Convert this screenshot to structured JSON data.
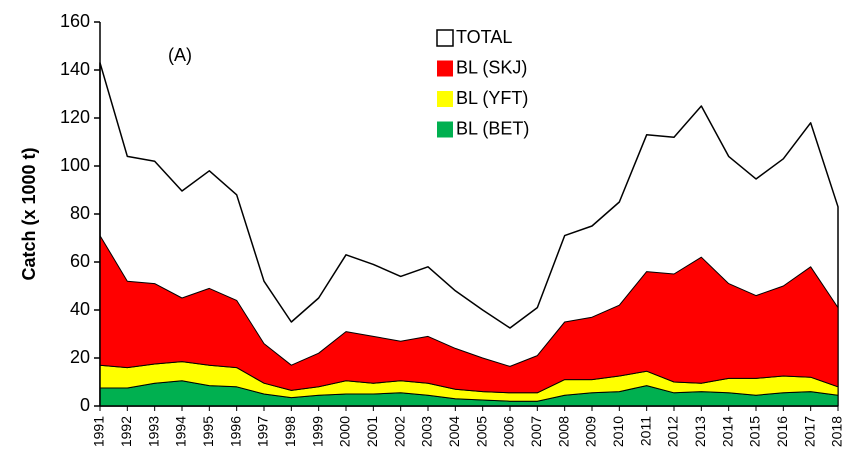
{
  "chart_data": {
    "type": "area",
    "y_label": "Catch (x 1000 t)",
    "annotation": "(A)",
    "categories": [
      "1991",
      "1992",
      "1993",
      "1994",
      "1995",
      "1996",
      "1997",
      "1998",
      "1999",
      "2000",
      "2001",
      "2002",
      "2003",
      "2004",
      "2005",
      "2006",
      "2007",
      "2008",
      "2009",
      "2010",
      "2011",
      "2012",
      "2013",
      "2014",
      "2015",
      "2016",
      "2017",
      "2018"
    ],
    "series": [
      {
        "name": "TOTAL",
        "color": "#ffffff",
        "stacked": false,
        "values": [
          143,
          104,
          102,
          89.6,
          98,
          88,
          52,
          35,
          45,
          63,
          59,
          54,
          58,
          48,
          40,
          32.5,
          41,
          71,
          75,
          85,
          113,
          112,
          125,
          104,
          94.6,
          103,
          118,
          83
        ]
      },
      {
        "name": "BL (SKJ)",
        "color": "#ff0000",
        "stacked": true,
        "values": [
          54,
          36,
          33.5,
          26.5,
          32,
          28,
          16.5,
          10.5,
          14,
          20.5,
          19.5,
          16.5,
          19.5,
          17,
          14,
          11,
          15.5,
          24,
          26,
          29.5,
          41.5,
          45,
          52.5,
          39.5,
          34.5,
          37.5,
          46,
          33
        ]
      },
      {
        "name": "BL (YFT)",
        "color": "#ffff00",
        "stacked": true,
        "values": [
          9.5,
          8.5,
          8,
          8,
          8.5,
          8,
          4.5,
          3,
          3.5,
          5.5,
          4.5,
          5,
          5,
          4,
          3.5,
          3.5,
          3.5,
          6.5,
          5.5,
          6.5,
          6,
          4.5,
          3.5,
          6,
          7,
          7,
          6,
          3.5
        ]
      },
      {
        "name": "BL (BET)",
        "color": "#00b050",
        "stacked": true,
        "values": [
          7.5,
          7.5,
          9.5,
          10.5,
          8.5,
          8,
          5,
          3.5,
          4.5,
          5,
          5,
          5.5,
          4.5,
          3,
          2.5,
          2,
          2,
          4.5,
          5.5,
          6,
          8.5,
          5.5,
          6,
          5.5,
          4.5,
          5.5,
          6,
          4.5
        ]
      }
    ],
    "ylim": [
      0,
      160
    ],
    "yticks": [
      0,
      20,
      40,
      60,
      80,
      100,
      120,
      140,
      160
    ]
  }
}
